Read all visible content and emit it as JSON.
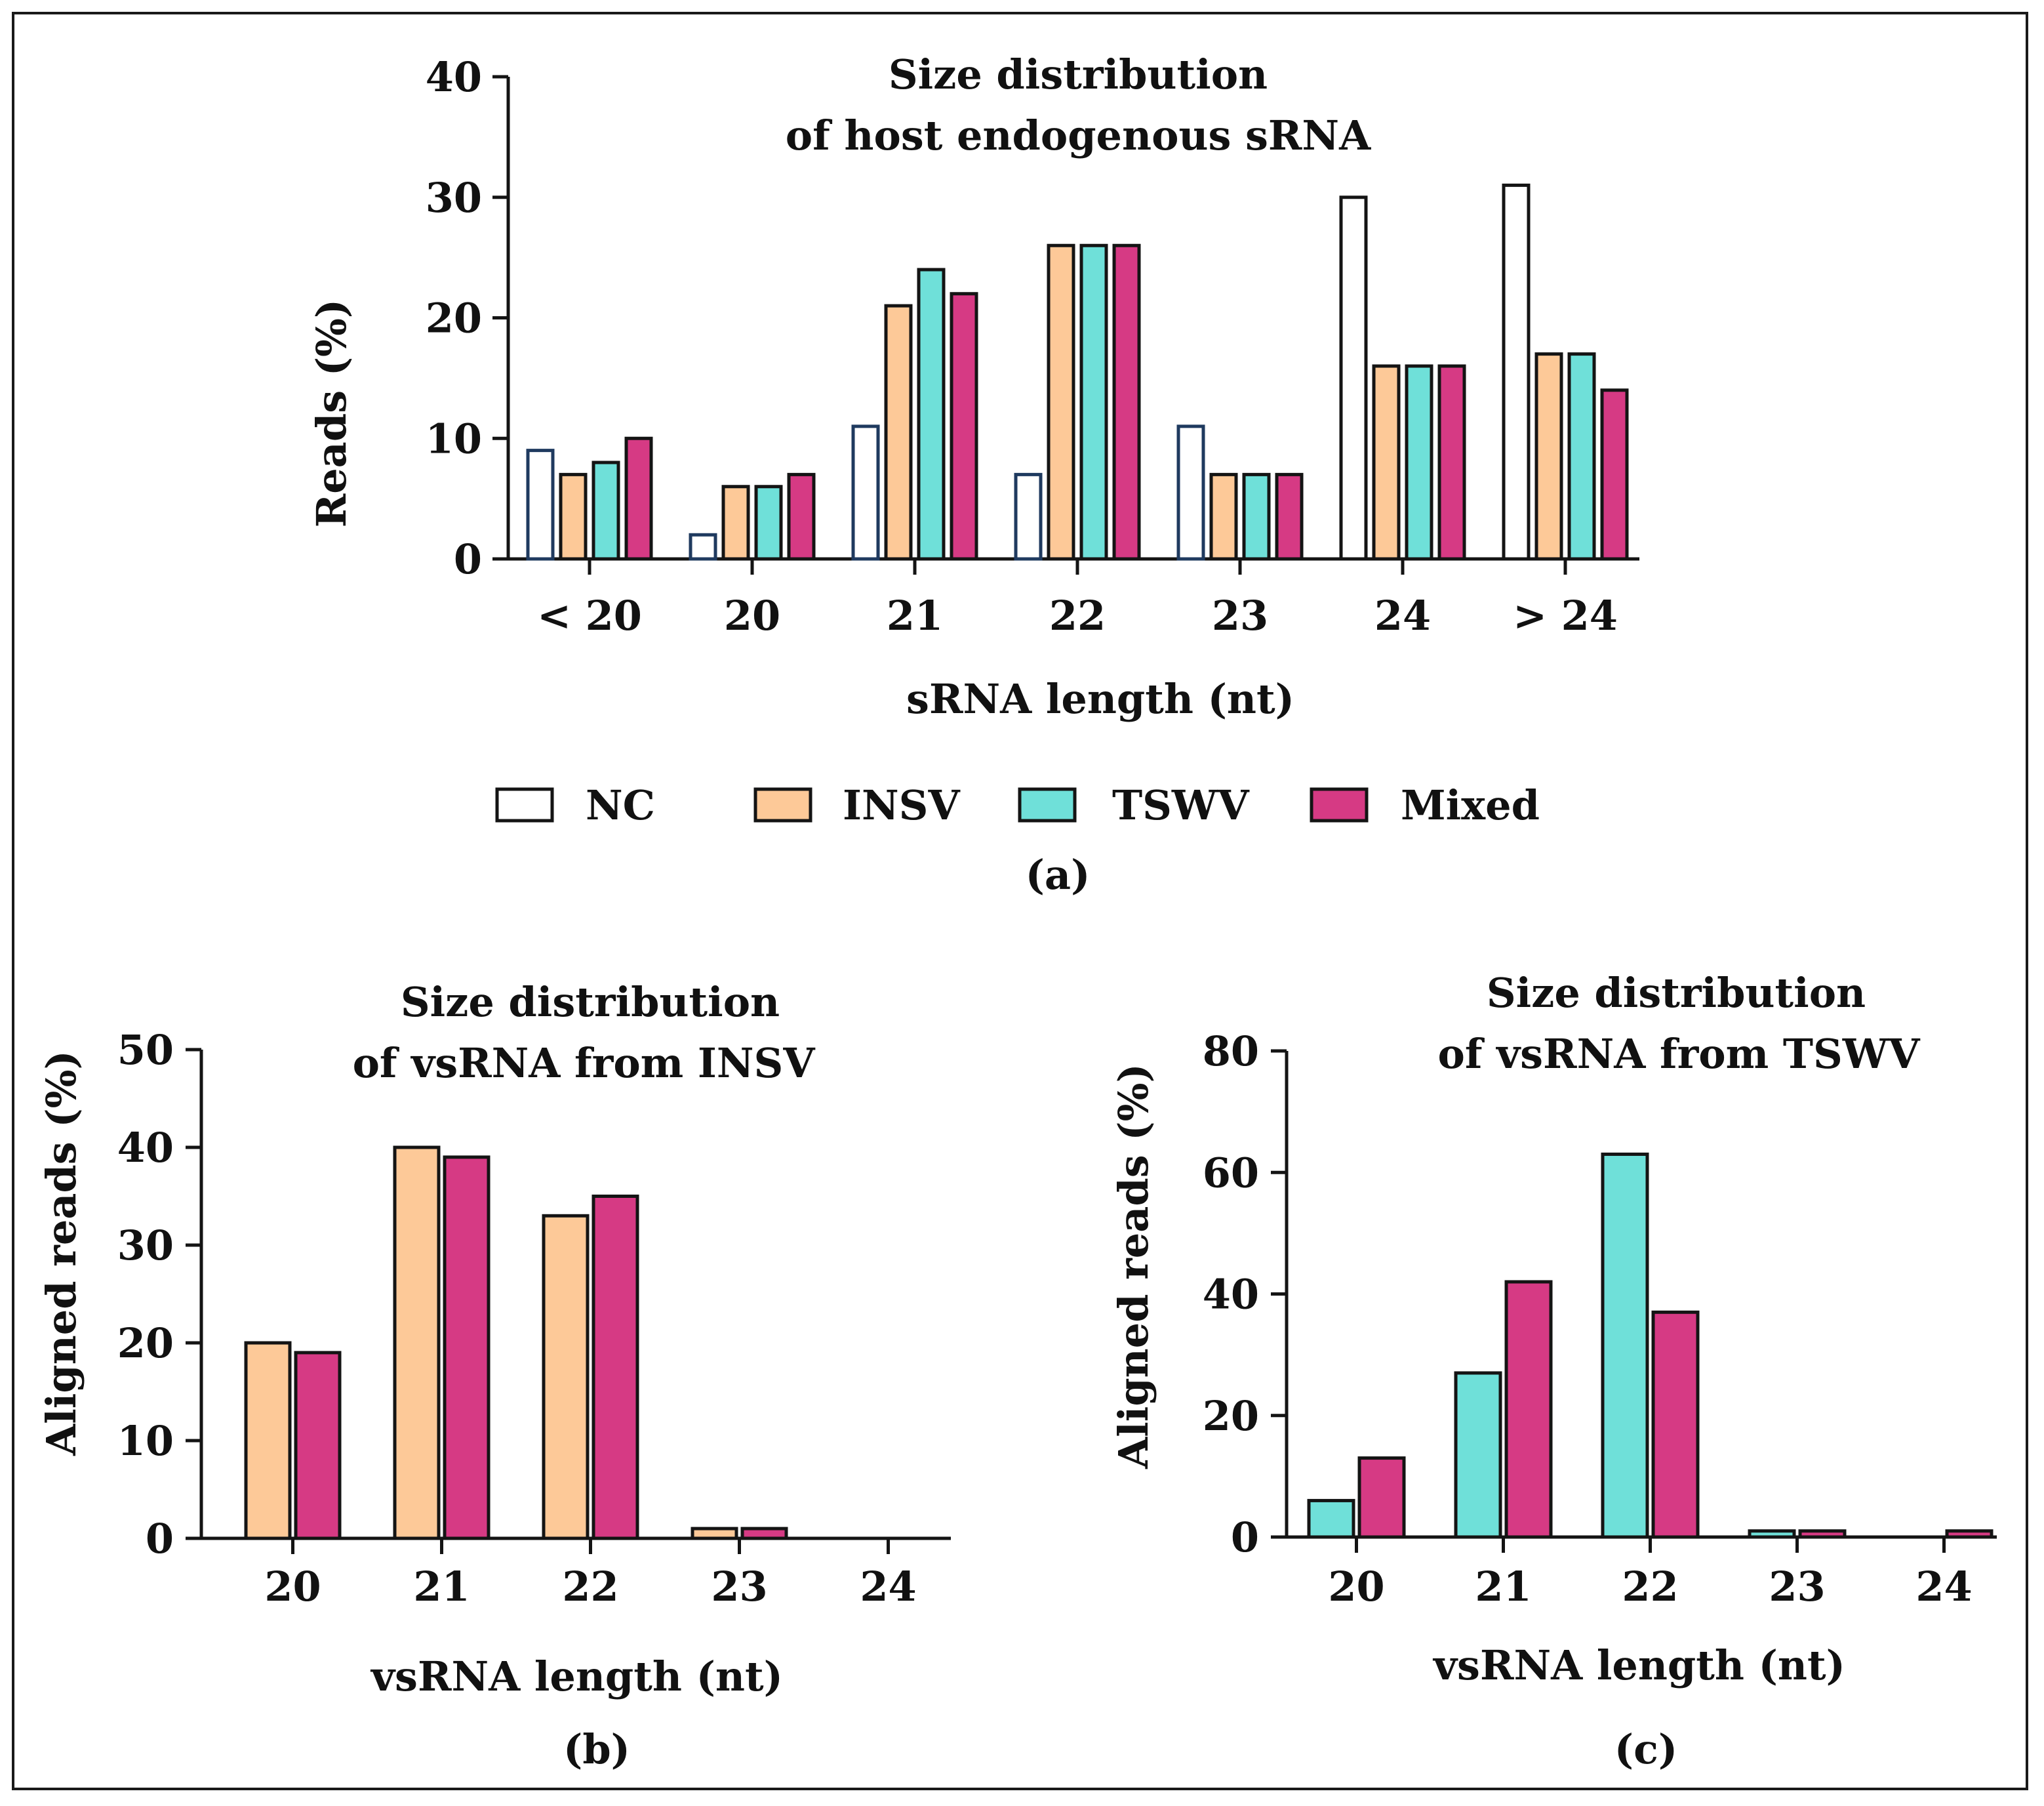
{
  "colors": {
    "NC": "#ffffff",
    "INSV": "#fdc998",
    "TSWV": "#6fe0d9",
    "Mixed": "#d63a84",
    "stroke": "#141414",
    "NC_stroke_small": "#1f3a5f"
  },
  "legend": {
    "entries": [
      "NC",
      "INSV",
      "TSWV",
      "Mixed"
    ]
  },
  "chart_data": [
    {
      "id": "a",
      "type": "bar",
      "panel_label": "(a)",
      "title_line1": "Size distribution",
      "title_line2": "of host endogenous sRNA",
      "xlabel": "sRNA length (nt)",
      "ylabel": "Reads (%)",
      "ylim": [
        0,
        40
      ],
      "yticks": [
        "0",
        "10",
        "20",
        "30",
        "40"
      ],
      "categories": [
        "< 20",
        "20",
        "21",
        "22",
        "23",
        "24",
        "> 24"
      ],
      "series": [
        {
          "name": "NC",
          "values": [
            9,
            2,
            11,
            7,
            11,
            30,
            31
          ]
        },
        {
          "name": "INSV",
          "values": [
            7,
            6,
            21,
            26,
            7,
            16,
            17
          ]
        },
        {
          "name": "TSWV",
          "values": [
            8,
            6,
            24,
            26,
            7,
            16,
            17
          ]
        },
        {
          "name": "Mixed",
          "values": [
            10,
            7,
            22,
            26,
            7,
            16,
            14
          ]
        }
      ]
    },
    {
      "id": "b",
      "type": "bar",
      "panel_label": "(b)",
      "title_line1": "Size distribution",
      "title_line2": "of vsRNA from INSV",
      "xlabel": "vsRNA length (nt)",
      "ylabel": "Aligned reads (%)",
      "ylim": [
        0,
        50
      ],
      "yticks": [
        "0",
        "10",
        "20",
        "30",
        "40",
        "50"
      ],
      "categories": [
        "20",
        "21",
        "22",
        "23",
        "24"
      ],
      "series": [
        {
          "name": "INSV",
          "values": [
            20,
            40,
            33,
            1,
            0
          ]
        },
        {
          "name": "Mixed",
          "values": [
            19,
            39,
            35,
            1,
            0
          ]
        }
      ]
    },
    {
      "id": "c",
      "type": "bar",
      "panel_label": "(c)",
      "title_line1": "Size distribution",
      "title_line2": "of vsRNA from TSWV",
      "xlabel": "vsRNA length (nt)",
      "ylabel": "Aligned reads (%)",
      "ylim": [
        0,
        80
      ],
      "yticks": [
        "0",
        "20",
        "40",
        "60",
        "80"
      ],
      "categories": [
        "20",
        "21",
        "22",
        "23",
        "24"
      ],
      "series": [
        {
          "name": "TSWV",
          "values": [
            6,
            27,
            63,
            1,
            0
          ]
        },
        {
          "name": "Mixed",
          "values": [
            13,
            42,
            37,
            1,
            1
          ]
        }
      ]
    }
  ]
}
